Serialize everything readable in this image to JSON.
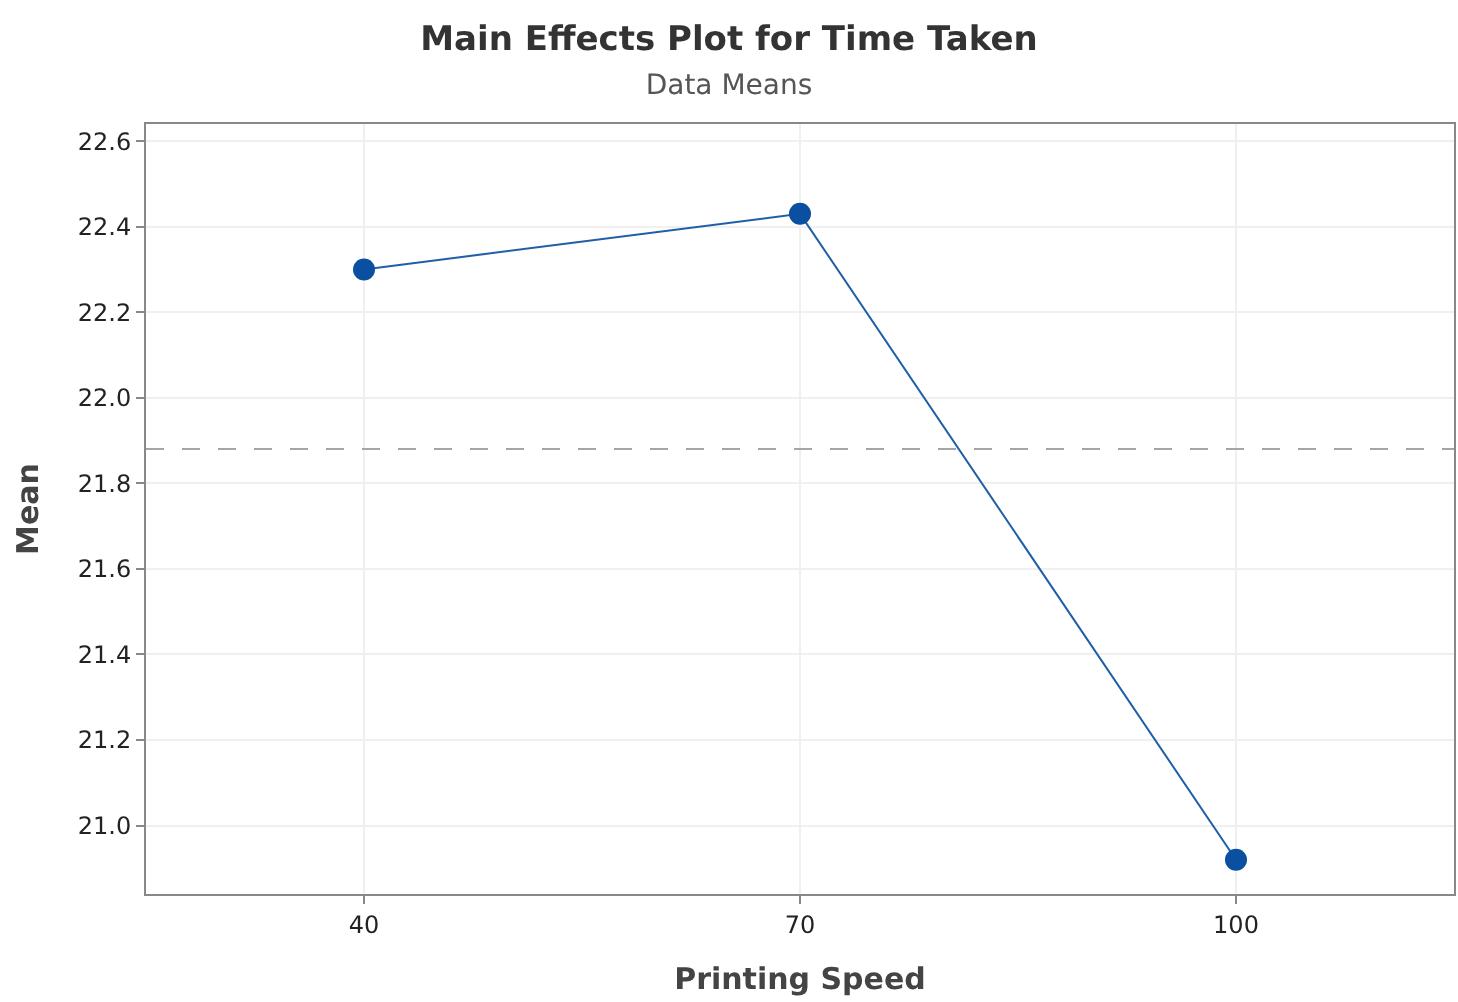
{
  "chart_data": {
    "type": "line",
    "title": "Main Effects Plot for Time Taken",
    "subtitle": "Data Means",
    "xlabel": "Printing Speed",
    "ylabel": "Mean",
    "categories": [
      "40",
      "70",
      "100"
    ],
    "series": [
      {
        "color": "#1f5fa8",
        "values": [
          22.3,
          22.43,
          20.92
        ]
      }
    ],
    "marker": "circle",
    "line_style": "solid",
    "ylim": [
      20.84,
      22.64
    ],
    "yticks": [
      {
        "value": 21.0,
        "label": "21.0"
      },
      {
        "value": 21.2,
        "label": "21.2"
      },
      {
        "value": 21.4,
        "label": "21.4"
      },
      {
        "value": 21.6,
        "label": "21.6"
      },
      {
        "value": 21.8,
        "label": "21.8"
      },
      {
        "value": 22.0,
        "label": "22.0"
      },
      {
        "value": 22.2,
        "label": "22.2"
      },
      {
        "value": 22.4,
        "label": "22.4"
      },
      {
        "value": 22.6,
        "label": "22.6"
      }
    ],
    "ref_lines": [
      {
        "axis": "y",
        "value": 21.88,
        "color": "#a6a6a6",
        "line_style": "dashed"
      }
    ],
    "grid": true,
    "legend": false
  }
}
